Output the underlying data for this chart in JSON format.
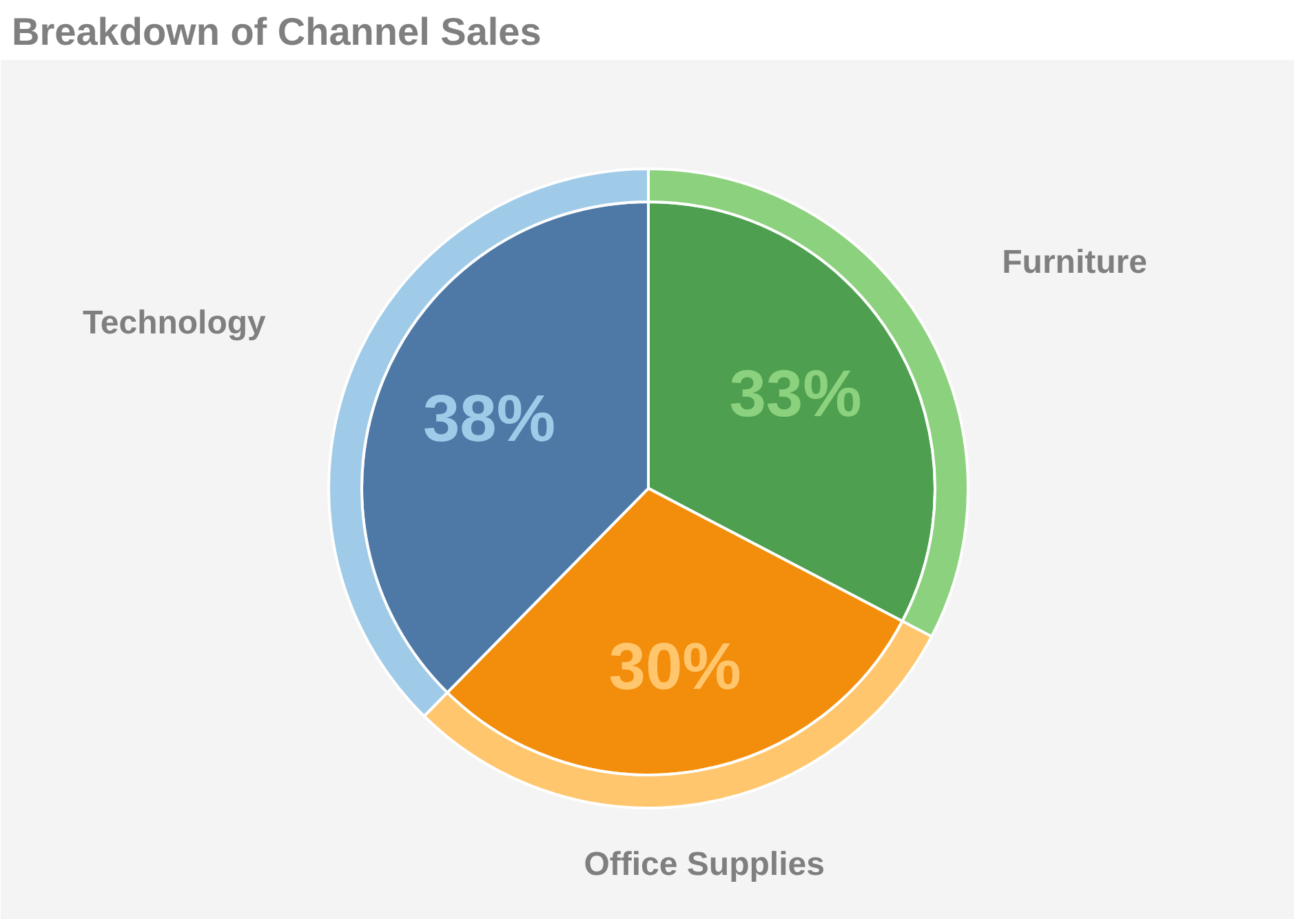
{
  "chart_data": {
    "type": "pie",
    "title": "Breakdown of Channel Sales",
    "categories": [
      "Furniture",
      "Office Supplies",
      "Technology"
    ],
    "series": [
      {
        "values": [
          33,
          30,
          38
        ],
        "value_labels": [
          "33%",
          "30%",
          "38%"
        ],
        "colors": [
          "#4e9f50",
          "#f28e0b",
          "#4e79a7"
        ]
      },
      {
        "type": "donut",
        "values": [
          33,
          30,
          38
        ],
        "colors": [
          "#8cd17d",
          "#ffc66e",
          "#a0cbe8"
        ]
      }
    ]
  }
}
